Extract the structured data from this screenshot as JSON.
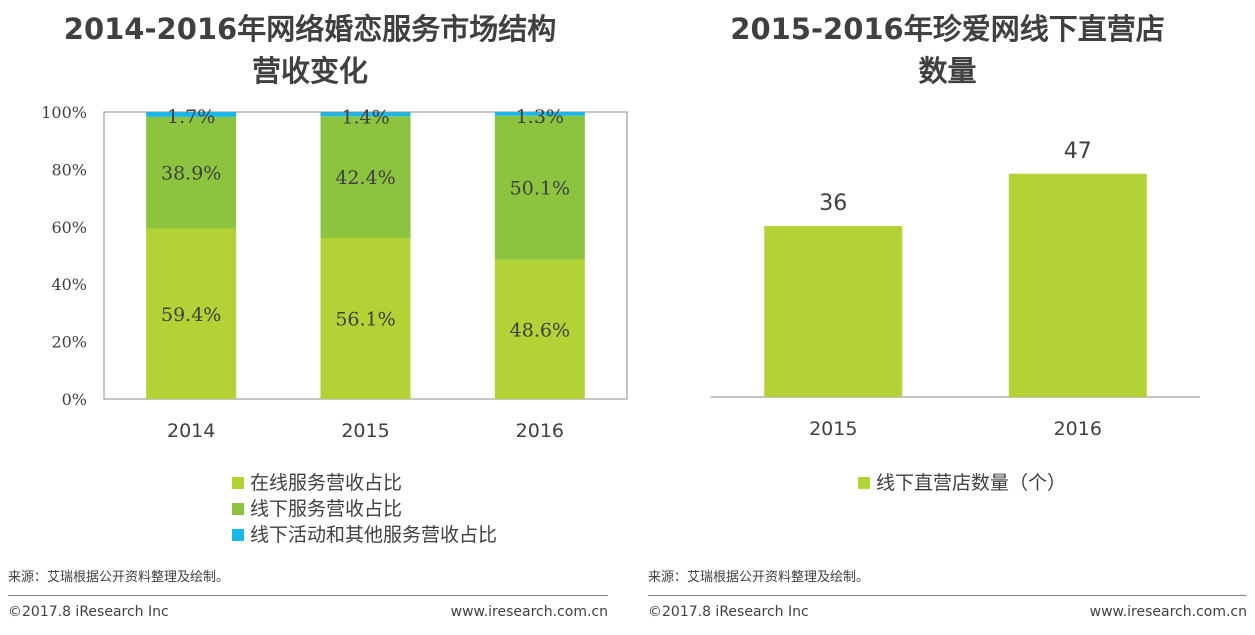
{
  "chart_data": [
    {
      "type": "bar",
      "stacked": true,
      "percent": true,
      "title": [
        "2014-2016年网络婚恋服务市场结构",
        "营收变化"
      ],
      "categories": [
        "2014",
        "2015",
        "2016"
      ],
      "series": [
        {
          "name": "在线服务营收占比",
          "color": "#b2d235",
          "values": [
            59.4,
            56.1,
            48.6
          ]
        },
        {
          "name": "线下服务营收占比",
          "color": "#8cc43f",
          "values": [
            38.9,
            42.4,
            50.1
          ]
        },
        {
          "name": "线下活动和其他服务营收占比",
          "color": "#1ab7ea",
          "values": [
            1.7,
            1.4,
            1.3
          ]
        }
      ],
      "ylim": [
        0,
        100
      ],
      "yticks": [
        "0%",
        "20%",
        "40%",
        "60%",
        "80%",
        "100%"
      ],
      "legend_position": "bottom"
    },
    {
      "type": "bar",
      "title": [
        "2015-2016年珍爱网线下直营店",
        "数量"
      ],
      "categories": [
        "2015",
        "2016"
      ],
      "series": [
        {
          "name": "线下直营店数量（个）",
          "color": "#b2d235",
          "values": [
            36,
            47
          ]
        }
      ],
      "ylim": [
        0,
        60
      ],
      "legend_position": "bottom"
    }
  ],
  "left": {
    "source": "来源：艾瑞根据公开资料整理及绘制。",
    "copyright": "©2017.8 iResearch Inc",
    "website": "www.iresearch.com.cn"
  },
  "right": {
    "source": "来源：艾瑞根据公开资料整理及绘制。",
    "copyright": "©2017.8 iResearch Inc",
    "website": "www.iresearch.com.cn"
  }
}
